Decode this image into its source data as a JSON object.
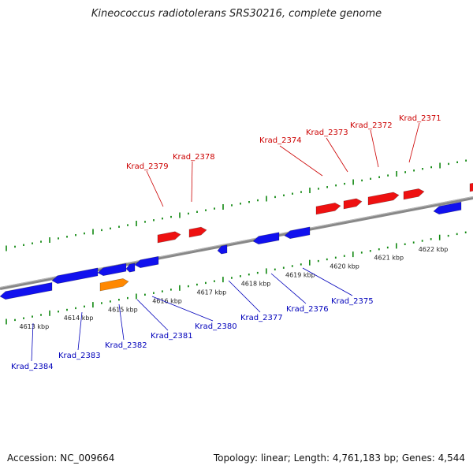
{
  "title": "Kineococcus radiotolerans SRS30216, complete genome",
  "footer": {
    "accession": "Accession: NC_009664",
    "summary": "Topology: linear; Length: 4,761,183 bp; Genes: 4,544"
  },
  "colors": {
    "forward_gene": "#ee1111",
    "reverse_gene": "#1111ee",
    "rna_gene": "#ff8800",
    "genome_line": "#888888",
    "tick": "#118811",
    "forward_label": "#cc0000",
    "reverse_label": "#0000bb"
  },
  "ticks": [
    {
      "label": "4613 kbp",
      "p": 0.06
    },
    {
      "label": "4614 kbp",
      "p": 0.155
    },
    {
      "label": "4615 kbp",
      "p": 0.25
    },
    {
      "label": "4616 kbp",
      "p": 0.345
    },
    {
      "label": "4617 kbp",
      "p": 0.44
    },
    {
      "label": "4618 kbp",
      "p": 0.535
    },
    {
      "label": "4619 kbp",
      "p": 0.63
    },
    {
      "label": "4620 kbp",
      "p": 0.725
    },
    {
      "label": "4621 kbp",
      "p": 0.82
    },
    {
      "label": "4622 kbp",
      "p": 0.915
    }
  ],
  "forward_labels": [
    {
      "name": "Krad_2379"
    },
    {
      "name": "Krad_2378"
    },
    {
      "name": "Krad_2374"
    },
    {
      "name": "Krad_2373"
    },
    {
      "name": "Krad_2372"
    },
    {
      "name": "Krad_2371"
    }
  ],
  "reverse_labels": [
    {
      "name": "Krad_2384"
    },
    {
      "name": "Krad_2383"
    },
    {
      "name": "Krad_2382"
    },
    {
      "name": "Krad_2381"
    },
    {
      "name": "Krad_2380"
    },
    {
      "name": "Krad_2377"
    },
    {
      "name": "Krad_2376"
    },
    {
      "name": "Krad_2375"
    }
  ]
}
